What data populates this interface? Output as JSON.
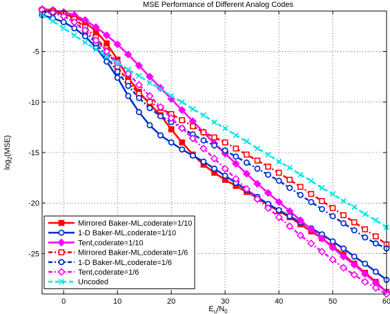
{
  "chart_data": {
    "type": "line",
    "title": "MSE Performance of Different Analog Codes",
    "xlabel": {
      "main": "E",
      "sub1": "u",
      "mid": "/N",
      "sub2": "0"
    },
    "ylabel": {
      "main": "log",
      "sub": "2",
      "rest": "(MSE)"
    },
    "xlim": [
      -4,
      60
    ],
    "ylim": [
      -29,
      -1
    ],
    "xticks": [
      0,
      10,
      20,
      30,
      40,
      50,
      60
    ],
    "yticks": [
      -5,
      -10,
      -15,
      -20,
      -25
    ],
    "xtick_labels": [
      "0",
      "10",
      "20",
      "30",
      "40",
      "50",
      "60"
    ],
    "ytick_labels": [
      "-5",
      "-10",
      "-15",
      "-20",
      "-25"
    ],
    "grid": true,
    "legend_position": "bottom-left",
    "x": [
      -4,
      -2,
      0,
      2,
      4,
      6,
      8,
      10,
      12,
      14,
      16,
      18,
      20,
      22,
      24,
      26,
      28,
      30,
      32,
      34,
      36,
      38,
      40,
      42,
      44,
      46,
      48,
      50,
      52,
      54,
      56,
      58,
      60
    ],
    "series": [
      {
        "name": "Mirrored Baker-ML,coderate=1/10",
        "color": "#ff0000",
        "dash": "solid",
        "marker": "square",
        "filled": true,
        "values": [
          -1.0,
          -1.1,
          -1.3,
          -1.6,
          -2.1,
          -3.0,
          -4.2,
          -5.8,
          -7.6,
          -9.0,
          -10.2,
          -11.3,
          -12.7,
          -14.0,
          -15.2,
          -16.2,
          -17.0,
          -17.7,
          -18.3,
          -18.9,
          -19.5,
          -20.2,
          -20.8,
          -21.4,
          -22.1,
          -22.8,
          -23.5,
          -24.3,
          -25.1,
          -26.0,
          -26.9,
          -27.8,
          -28.8
        ]
      },
      {
        "name": "1-D Baker-ML,coderate=1/10",
        "color": "#0033cc",
        "dash": "solid",
        "marker": "circle",
        "filled": false,
        "values": [
          -1.4,
          -1.7,
          -2.1,
          -2.7,
          -3.5,
          -4.6,
          -6.0,
          -7.6,
          -9.4,
          -11.0,
          -12.3,
          -13.3,
          -14.0,
          -14.7,
          -15.3,
          -15.9,
          -16.6,
          -17.3,
          -18.0,
          -18.7,
          -19.4,
          -20.1,
          -20.7,
          -21.3,
          -21.9,
          -22.5,
          -23.1,
          -23.8,
          -24.5,
          -25.3,
          -26.0,
          -26.8,
          -27.6
        ]
      },
      {
        "name": "Tent,coderate=1/10",
        "color": "#ff00ff",
        "dash": "solid",
        "marker": "diamond",
        "filled": true,
        "values": [
          -0.8,
          -0.9,
          -1.1,
          -1.4,
          -1.9,
          -2.6,
          -3.4,
          -4.3,
          -5.3,
          -6.4,
          -7.5,
          -8.6,
          -9.7,
          -10.8,
          -11.9,
          -13.0,
          -14.1,
          -15.1,
          -16.1,
          -17.1,
          -18.1,
          -19.0,
          -19.9,
          -20.8,
          -21.7,
          -22.6,
          -23.5,
          -24.4,
          -25.3,
          -26.1,
          -27.0,
          -27.9,
          -28.8
        ]
      },
      {
        "name": "Mirrored Baker-ML,coderate=1/6",
        "color": "#ff0000",
        "dash": "dashdot",
        "marker": "square",
        "filled": false,
        "values": [
          -0.9,
          -1.0,
          -1.3,
          -1.8,
          -2.6,
          -3.6,
          -4.9,
          -6.5,
          -8.0,
          -9.2,
          -10.0,
          -10.6,
          -11.2,
          -11.8,
          -12.4,
          -13.0,
          -13.5,
          -14.0,
          -14.6,
          -15.2,
          -15.8,
          -16.4,
          -17.0,
          -17.7,
          -18.4,
          -19.1,
          -19.8,
          -20.5,
          -21.2,
          -21.9,
          -22.6,
          -23.3,
          -24.1
        ]
      },
      {
        "name": "1-D Baker-ML,coderate=1/6",
        "color": "#0033cc",
        "dash": "dashdot",
        "marker": "circle",
        "filled": false,
        "values": [
          -1.1,
          -1.2,
          -1.5,
          -2.1,
          -3.0,
          -4.2,
          -5.5,
          -7.0,
          -8.4,
          -9.6,
          -10.6,
          -11.4,
          -12.0,
          -12.6,
          -13.2,
          -13.8,
          -14.3,
          -14.8,
          -15.4,
          -16.0,
          -16.6,
          -17.2,
          -17.8,
          -18.5,
          -19.2,
          -19.9,
          -20.6,
          -21.3,
          -22.0,
          -22.7,
          -23.4,
          -24.0,
          -24.5
        ]
      },
      {
        "name": "Tent,coderate=1/6",
        "color": "#ff00ff",
        "dash": "dashdot",
        "marker": "diamond",
        "filled": false,
        "values": [
          -0.9,
          -1.1,
          -1.5,
          -2.1,
          -2.9,
          -3.9,
          -5.0,
          -6.1,
          -7.2,
          -8.3,
          -9.4,
          -10.5,
          -11.6,
          -12.6,
          -13.6,
          -14.6,
          -15.6,
          -16.6,
          -17.6,
          -18.6,
          -19.6,
          -20.5,
          -21.4,
          -22.3,
          -23.2,
          -24.0,
          -24.8,
          -25.6,
          -26.4,
          -27.1,
          -27.8,
          -28.4,
          -29.0
        ]
      },
      {
        "name": "Uncoded",
        "color": "#00e5e5",
        "dash": "dashed",
        "marker": "x",
        "filled": false,
        "values": [
          -1.4,
          -2.0,
          -2.7,
          -3.4,
          -4.1,
          -4.8,
          -5.5,
          -6.1,
          -6.8,
          -7.4,
          -8.1,
          -8.7,
          -9.4,
          -10.0,
          -10.7,
          -11.3,
          -12.0,
          -12.6,
          -13.3,
          -13.9,
          -14.6,
          -15.2,
          -15.9,
          -16.5,
          -17.2,
          -17.8,
          -18.5,
          -19.1,
          -19.8,
          -20.4,
          -21.1,
          -21.7,
          -22.4
        ]
      }
    ]
  }
}
